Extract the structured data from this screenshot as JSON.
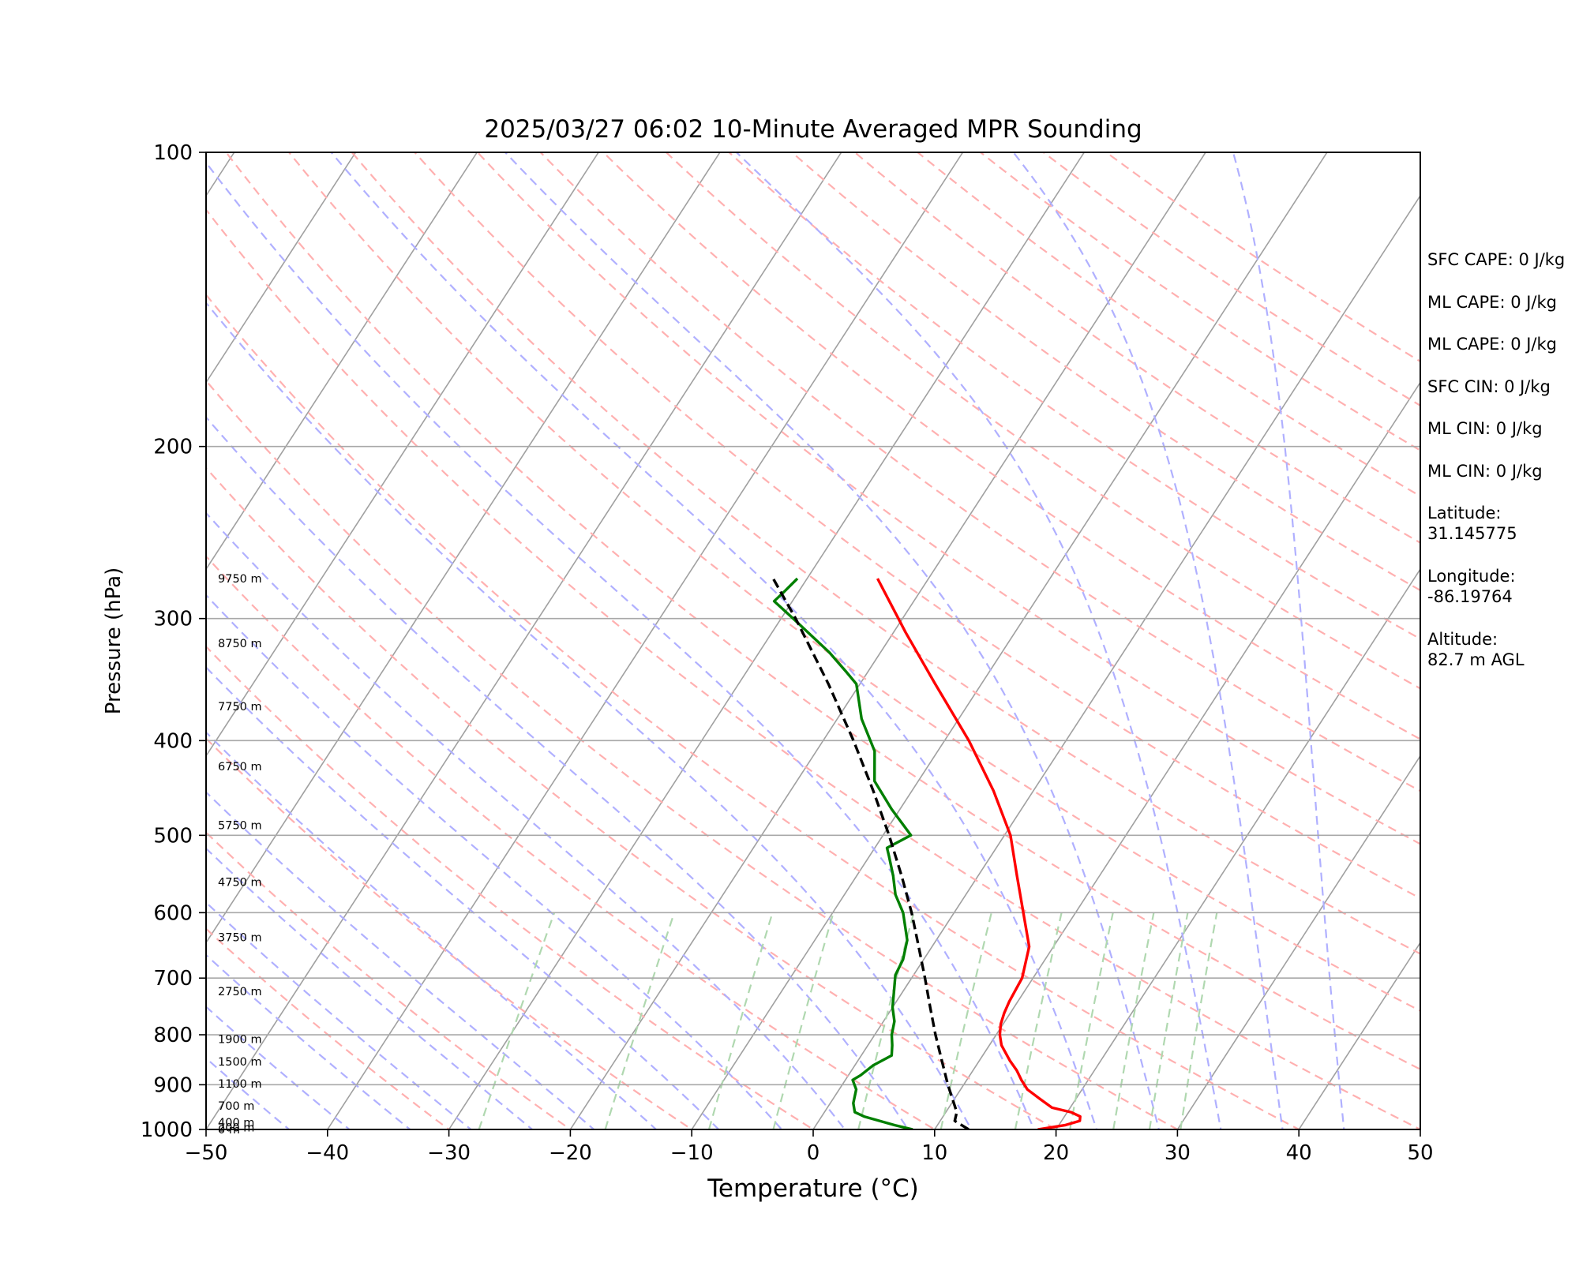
{
  "chart_data": {
    "type": "skew-t log-p diagram",
    "title": "2025/03/27 06:02 10-Minute Averaged MPR Sounding",
    "xlabel": "Temperature (°C)",
    "ylabel": "Pressure (hPa)",
    "xlim": [
      -50,
      50
    ],
    "ylim": [
      1000,
      100
    ],
    "y_scale": "log",
    "x_ticks": [
      "−50",
      "−40",
      "−30",
      "−20",
      "−10",
      "0",
      "10",
      "20",
      "30",
      "40",
      "50"
    ],
    "x_tick_values": [
      -50,
      -40,
      -30,
      -20,
      -10,
      0,
      10,
      20,
      30,
      40,
      50
    ],
    "y_ticks": [
      "100",
      "200",
      "300",
      "400",
      "500",
      "600",
      "700",
      "800",
      "900",
      "1000"
    ],
    "y_tick_values": [
      100,
      200,
      300,
      400,
      500,
      600,
      700,
      800,
      900,
      1000
    ],
    "grid": true,
    "series": [
      {
        "name": "",
        "kind": "temperature",
        "color": "#ff0000",
        "points": [
          [
            1000,
            18.5
          ],
          [
            990,
            20.5
          ],
          [
            980,
            21.5
          ],
          [
            970,
            21.3
          ],
          [
            960,
            20.3
          ],
          [
            950,
            18.5
          ],
          [
            930,
            17.0
          ],
          [
            910,
            15.5
          ],
          [
            890,
            14.5
          ],
          [
            870,
            13.6
          ],
          [
            850,
            12.5
          ],
          [
            820,
            11.0
          ],
          [
            800,
            10.3
          ],
          [
            780,
            9.8
          ],
          [
            760,
            9.5
          ],
          [
            740,
            9.3
          ],
          [
            700,
            9.1
          ],
          [
            650,
            8.0
          ],
          [
            600,
            5.7
          ],
          [
            550,
            3.2
          ],
          [
            500,
            0.5
          ],
          [
            450,
            -3.3
          ],
          [
            400,
            -8.0
          ],
          [
            350,
            -13.8
          ],
          [
            310,
            -19.0
          ],
          [
            273,
            -24.2
          ]
        ]
      },
      {
        "name": "",
        "kind": "dewpoint",
        "color": "#007f00",
        "points": [
          [
            1000,
            8.2
          ],
          [
            990,
            6.5
          ],
          [
            980,
            5.0
          ],
          [
            970,
            3.5
          ],
          [
            960,
            2.5
          ],
          [
            940,
            1.9
          ],
          [
            910,
            1.4
          ],
          [
            890,
            0.6
          ],
          [
            880,
            1.0
          ],
          [
            860,
            1.5
          ],
          [
            840,
            2.5
          ],
          [
            820,
            2.0
          ],
          [
            800,
            1.4
          ],
          [
            775,
            0.9
          ],
          [
            750,
            0.0
          ],
          [
            720,
            -0.8
          ],
          [
            695,
            -1.5
          ],
          [
            670,
            -1.7
          ],
          [
            640,
            -2.4
          ],
          [
            600,
            -4.2
          ],
          [
            575,
            -5.8
          ],
          [
            550,
            -7.0
          ],
          [
            525,
            -8.4
          ],
          [
            515,
            -9.0
          ],
          [
            500,
            -7.7
          ],
          [
            470,
            -10.7
          ],
          [
            440,
            -13.6
          ],
          [
            410,
            -15.2
          ],
          [
            380,
            -18.0
          ],
          [
            350,
            -20.3
          ],
          [
            340,
            -21.8
          ],
          [
            325,
            -24.2
          ],
          [
            300,
            -29.0
          ],
          [
            288,
            -31.5
          ],
          [
            282,
            -31.2
          ],
          [
            273,
            -30.8
          ]
        ]
      },
      {
        "name": "",
        "kind": "parcel",
        "color": "#000000",
        "points": [
          [
            1000,
            12.8
          ],
          [
            980,
            11.2
          ],
          [
            960,
            10.9
          ],
          [
            900,
            8.7
          ],
          [
            850,
            6.9
          ],
          [
            800,
            5.0
          ],
          [
            750,
            3.1
          ],
          [
            700,
            1.1
          ],
          [
            650,
            -1.1
          ],
          [
            600,
            -3.5
          ],
          [
            550,
            -6.3
          ],
          [
            500,
            -9.5
          ],
          [
            450,
            -13.2
          ],
          [
            400,
            -17.5
          ],
          [
            350,
            -22.6
          ],
          [
            300,
            -28.8
          ],
          [
            273,
            -32.8
          ]
        ]
      }
    ],
    "height_labels": [
      {
        "p": 273,
        "label": "9750 m"
      },
      {
        "p": 318,
        "label": "8750 m"
      },
      {
        "p": 369,
        "label": "7750 m"
      },
      {
        "p": 425,
        "label": "6750 m"
      },
      {
        "p": 488,
        "label": "5750 m"
      },
      {
        "p": 558,
        "label": "4750 m"
      },
      {
        "p": 636,
        "label": "3750 m"
      },
      {
        "p": 722,
        "label": "2750 m"
      },
      {
        "p": 808,
        "label": "1900 m"
      },
      {
        "p": 852,
        "label": "1500 m"
      },
      {
        "p": 898,
        "label": "1100 m"
      },
      {
        "p": 946,
        "label": "700 m"
      },
      {
        "p": 983,
        "label": "400 m"
      },
      {
        "p": 995,
        "label": "200 m"
      },
      {
        "p": 1000,
        "label": "0 m"
      }
    ],
    "background_lines": {
      "isotherms_color": "#a0a0a0",
      "dry_adiabats_color": "#ffb0b0",
      "moist_adiabats_color": "#b0b0ff",
      "mixing_ratio_color": "#b0d8b0"
    }
  },
  "info_panel": {
    "sfc_cape": "SFC CAPE: 0 J/kg",
    "ml_cape_1": "ML CAPE: 0 J/kg",
    "ml_cape_2": "ML CAPE: 0 J/kg",
    "sfc_cin": "SFC CIN: 0 J/kg",
    "ml_cin_1": "ML CIN: 0 J/kg",
    "ml_cin_2": "ML CIN: 0 J/kg",
    "latitude": "Latitude:\n31.145775",
    "longitude": "Longitude:\n-86.19764",
    "altitude": "Altitude:\n82.7 m AGL"
  }
}
